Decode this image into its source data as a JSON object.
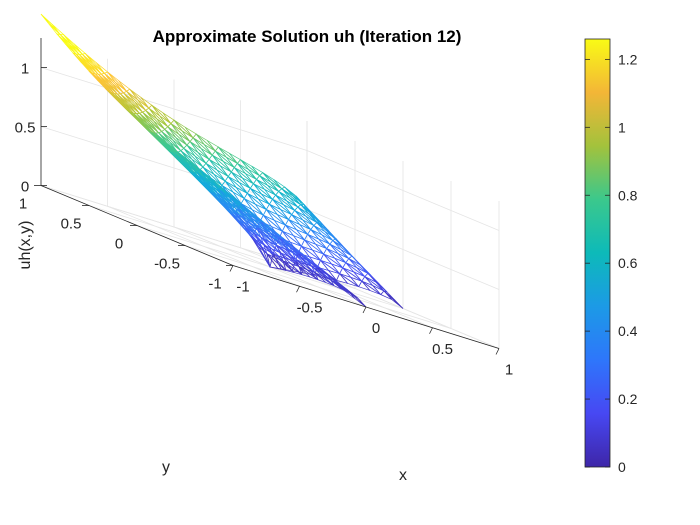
{
  "chart_data": {
    "type": "surface-mesh",
    "title": "Approximate Solution uh (Iteration 12)",
    "xlabel": "x",
    "ylabel": "y",
    "zlabel": "uh(x,y)",
    "xlim": [
      -1,
      1
    ],
    "ylim": [
      -1,
      1
    ],
    "zlim": [
      0,
      1.25
    ],
    "x_ticks": [
      "-1",
      "-0.5",
      "0",
      "0.5",
      "1"
    ],
    "y_ticks": [
      "-1",
      "-0.5",
      "0",
      "0.5",
      "1"
    ],
    "z_ticks": [
      "0",
      "0.5",
      "1"
    ],
    "colorbar": {
      "min": 0,
      "max": 1.26,
      "ticks": [
        "0",
        "0.2",
        "0.4",
        "0.6",
        "0.8",
        "1",
        "1.2"
      ],
      "colormap": "parula"
    },
    "domain": "L-shaped (lower-right quadrant x>0, y<0 excluded)",
    "corner_values": [
      {
        "x": -1,
        "y": 1,
        "z": 1.26
      },
      {
        "x": 1,
        "y": 1,
        "z": 0.6
      },
      {
        "x": 1,
        "y": 0,
        "z": 0.62
      },
      {
        "x": 0,
        "y": 0,
        "z": 0
      },
      {
        "x": 0,
        "y": -1,
        "z": 0.2
      },
      {
        "x": -1,
        "y": -1,
        "z": 0.6
      }
    ],
    "grid": true
  },
  "colors": {
    "background": "#ffffff",
    "grid": "#e6e6e6",
    "axis": "#262626"
  }
}
